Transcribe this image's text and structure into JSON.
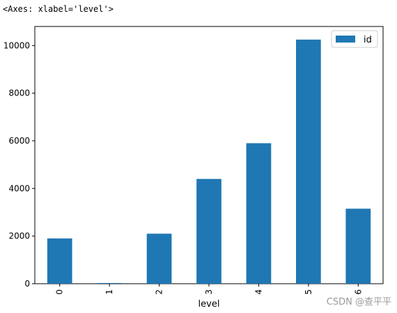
{
  "output_repr": "<Axes: xlabel='level'>",
  "watermark": "CSDN @查平平",
  "colors": {
    "bar": "#1f77b4",
    "axis": "#000000",
    "legend_border": "#cccccc"
  },
  "chart_data": {
    "type": "bar",
    "categories": [
      "0",
      "1",
      "2",
      "3",
      "4",
      "5",
      "6"
    ],
    "series": [
      {
        "name": "id",
        "values": [
          1900,
          30,
          2100,
          4400,
          5900,
          10250,
          3150
        ]
      }
    ],
    "xlabel": "level",
    "ylabel": "",
    "ylim": [
      0,
      10800
    ],
    "yticks": [
      0,
      2000,
      4000,
      6000,
      8000,
      10000
    ],
    "x_tick_rotation": 90,
    "legend_position": "top-right",
    "grid": false
  }
}
